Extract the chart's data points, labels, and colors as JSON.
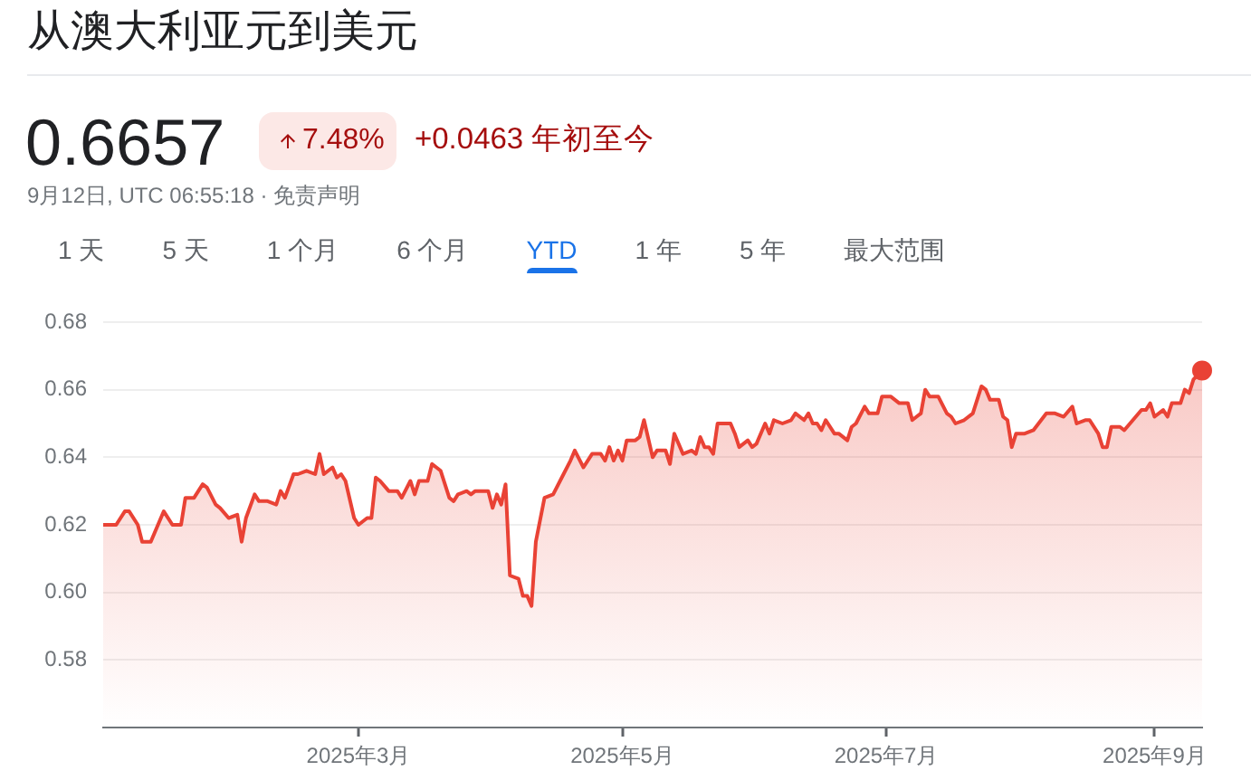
{
  "chart_data": {
    "type": "area",
    "title": "从澳大利亚元到美元",
    "annotations": [
      "0.6657",
      "7.48%",
      "+0.0463 年初至今",
      "9月12日, UTC 06:55:18 · 免责声明",
      "1 天",
      "5 天",
      "1 个月",
      "6 个月",
      "YTD",
      "1 年",
      "5 年",
      "最大范围"
    ],
    "x": [
      "2025-01-01",
      "2025-01-04",
      "2025-01-06",
      "2025-01-07",
      "2025-01-09",
      "2025-01-10",
      "2025-01-12",
      "2025-01-13",
      "2025-01-15",
      "2025-01-17",
      "2025-01-19",
      "2025-01-20",
      "2025-01-21",
      "2025-01-22",
      "2025-01-24",
      "2025-01-25",
      "2025-01-27",
      "2025-01-28",
      "2025-01-30",
      "2025-02-01",
      "2025-02-02",
      "2025-02-03",
      "2025-02-05",
      "2025-02-06",
      "2025-02-08",
      "2025-02-10",
      "2025-02-11",
      "2025-02-12",
      "2025-02-14",
      "2025-02-15",
      "2025-02-17",
      "2025-02-19",
      "2025-02-20",
      "2025-02-21",
      "2025-02-22",
      "2025-02-23",
      "2025-02-24",
      "2025-02-25",
      "2025-02-26",
      "2025-02-28",
      "2025-03-01",
      "2025-03-03",
      "2025-03-04",
      "2025-03-05",
      "2025-03-06",
      "2025-03-08",
      "2025-03-10",
      "2025-03-11",
      "2025-03-13",
      "2025-03-14",
      "2025-03-15",
      "2025-03-17",
      "2025-03-18",
      "2025-03-19",
      "2025-03-20",
      "2025-03-22",
      "2025-03-23",
      "2025-03-24",
      "2025-03-26",
      "2025-03-27",
      "2025-03-28",
      "2025-03-31",
      "2025-04-01",
      "2025-04-02",
      "2025-04-03",
      "2025-04-04",
      "2025-04-05",
      "2025-04-07",
      "2025-04-08",
      "2025-04-09",
      "2025-04-10",
      "2025-04-11",
      "2025-04-13",
      "2025-04-15",
      "2025-04-17",
      "2025-04-19",
      "2025-04-20",
      "2025-04-22",
      "2025-04-24",
      "2025-04-26",
      "2025-04-27",
      "2025-04-28",
      "2025-04-29",
      "2025-04-30",
      "2025-05-01",
      "2025-05-02",
      "2025-05-04",
      "2025-05-05",
      "2025-05-06",
      "2025-05-08",
      "2025-05-09",
      "2025-05-11",
      "2025-05-12",
      "2025-05-13",
      "2025-05-15",
      "2025-05-17",
      "2025-05-18",
      "2025-05-19",
      "2025-05-20",
      "2025-05-21",
      "2025-05-22",
      "2025-05-23",
      "2025-05-26",
      "2025-05-27",
      "2025-05-28",
      "2025-05-30",
      "2025-05-31",
      "2025-06-01",
      "2025-06-03",
      "2025-06-04",
      "2025-06-05",
      "2025-06-07",
      "2025-06-09",
      "2025-06-10",
      "2025-06-12",
      "2025-06-13",
      "2025-06-14",
      "2025-06-15",
      "2025-06-16",
      "2025-06-17",
      "2025-06-19",
      "2025-06-20",
      "2025-06-22",
      "2025-06-23",
      "2025-06-24",
      "2025-06-26",
      "2025-06-27",
      "2025-06-29",
      "2025-06-30",
      "2025-07-02",
      "2025-07-04",
      "2025-07-06",
      "2025-07-07",
      "2025-07-09",
      "2025-07-10",
      "2025-07-11",
      "2025-07-13",
      "2025-07-15",
      "2025-07-16",
      "2025-07-17",
      "2025-07-19",
      "2025-07-21",
      "2025-07-23",
      "2025-07-24",
      "2025-07-25",
      "2025-07-27",
      "2025-07-28",
      "2025-07-29",
      "2025-07-30",
      "2025-07-31",
      "2025-08-02",
      "2025-08-04",
      "2025-08-07",
      "2025-08-09",
      "2025-08-11",
      "2025-08-13",
      "2025-08-14",
      "2025-08-16",
      "2025-08-17",
      "2025-08-19",
      "2025-08-20",
      "2025-08-21",
      "2025-08-22",
      "2025-08-24",
      "2025-08-25",
      "2025-08-27",
      "2025-08-29",
      "2025-08-30",
      "2025-08-31",
      "2025-09-01",
      "2025-09-03",
      "2025-09-04",
      "2025-09-05",
      "2025-09-07",
      "2025-09-08",
      "2025-09-09",
      "2025-09-10",
      "2025-09-12"
    ],
    "series": [
      {
        "type": "area",
        "color": "#e94235",
        "values": [
          0.62,
          0.62,
          0.624,
          0.624,
          0.62,
          0.615,
          0.615,
          0.618,
          0.624,
          0.62,
          0.62,
          0.628,
          0.628,
          0.628,
          0.632,
          0.631,
          0.626,
          0.625,
          0.622,
          0.623,
          0.615,
          0.622,
          0.629,
          0.627,
          0.627,
          0.626,
          0.63,
          0.628,
          0.635,
          0.635,
          0.636,
          0.635,
          0.641,
          0.635,
          0.636,
          0.637,
          0.634,
          0.635,
          0.633,
          0.622,
          0.62,
          0.622,
          0.622,
          0.634,
          0.633,
          0.63,
          0.63,
          0.628,
          0.633,
          0.629,
          0.633,
          0.633,
          0.638,
          0.637,
          0.636,
          0.628,
          0.627,
          0.629,
          0.63,
          0.629,
          0.63,
          0.63,
          0.625,
          0.629,
          0.626,
          0.632,
          0.605,
          0.604,
          0.599,
          0.599,
          0.596,
          0.615,
          0.628,
          0.629,
          0.634,
          0.639,
          0.642,
          0.637,
          0.641,
          0.641,
          0.639,
          0.643,
          0.639,
          0.642,
          0.639,
          0.645,
          0.645,
          0.646,
          0.651,
          0.64,
          0.642,
          0.642,
          0.638,
          0.647,
          0.641,
          0.642,
          0.641,
          0.646,
          0.643,
          0.643,
          0.641,
          0.65,
          0.65,
          0.647,
          0.643,
          0.645,
          0.643,
          0.644,
          0.65,
          0.647,
          0.651,
          0.65,
          0.651,
          0.653,
          0.651,
          0.653,
          0.65,
          0.65,
          0.648,
          0.651,
          0.647,
          0.647,
          0.645,
          0.649,
          0.65,
          0.655,
          0.653,
          0.653,
          0.658,
          0.658,
          0.656,
          0.656,
          0.651,
          0.653,
          0.66,
          0.658,
          0.658,
          0.653,
          0.652,
          0.65,
          0.651,
          0.653,
          0.661,
          0.66,
          0.657,
          0.657,
          0.652,
          0.651,
          0.643,
          0.647,
          0.647,
          0.648,
          0.653,
          0.653,
          0.652,
          0.655,
          0.65,
          0.651,
          0.651,
          0.647,
          0.643,
          0.643,
          0.649,
          0.649,
          0.648,
          0.651,
          0.654,
          0.654,
          0.656,
          0.652,
          0.654,
          0.652,
          0.656,
          0.656,
          0.66,
          0.659,
          0.663,
          0.6657
        ]
      },
      {
        "type": "scatter",
        "color": "#e94235",
        "marker": "circle",
        "x": [
          "2025-09-12"
        ],
        "values": [
          0.6657
        ]
      }
    ],
    "xlim": [
      "2025-01-01",
      "2025-09-12"
    ],
    "xticks": [
      {
        "value": "2025-03-01",
        "label": "2025年3月"
      },
      {
        "value": "2025-05-01",
        "label": "2025年5月"
      },
      {
        "value": "2025-07-01",
        "label": "2025年7月"
      },
      {
        "value": "2025-09-01",
        "label": "2025年9月"
      }
    ],
    "ylim": [
      0.56,
      0.68
    ],
    "yticks": [
      0.58,
      {
        "value": 0.6,
        "label": "0.60"
      },
      0.62,
      0.64,
      0.66,
      0.68
    ],
    "grid": "y"
  }
}
